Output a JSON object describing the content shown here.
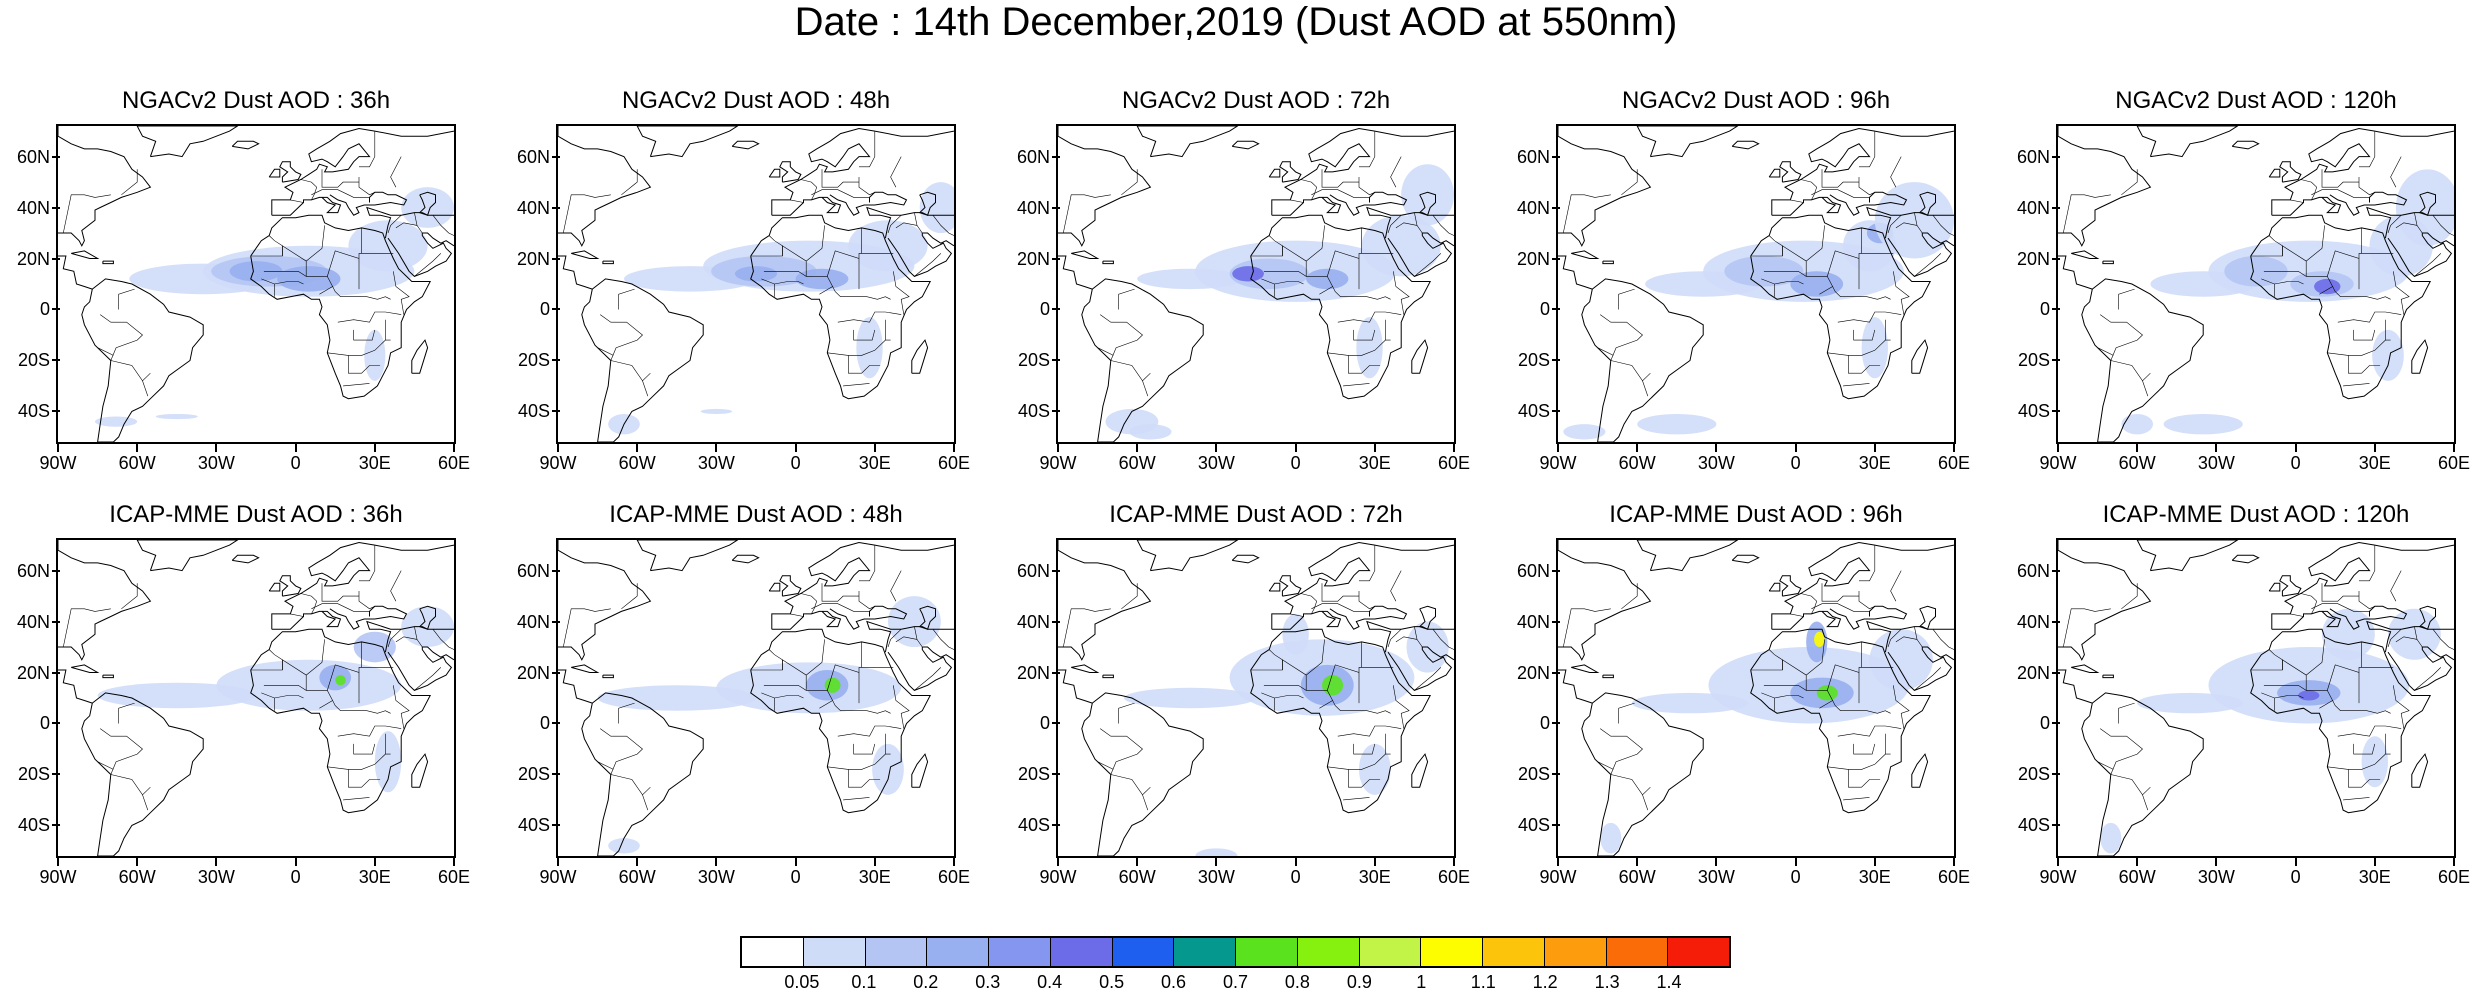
{
  "title": "Date : 14th December,2019 (Dust AOD at 550nm)",
  "panels": [
    {
      "title": "NGACv2 Dust AOD : 36h",
      "row": 0,
      "col": 0
    },
    {
      "title": "NGACv2 Dust AOD : 48h",
      "row": 0,
      "col": 1
    },
    {
      "title": "NGACv2 Dust AOD : 72h",
      "row": 0,
      "col": 2
    },
    {
      "title": "NGACv2 Dust AOD : 96h",
      "row": 0,
      "col": 3
    },
    {
      "title": "NGACv2 Dust AOD : 120h",
      "row": 0,
      "col": 4
    },
    {
      "title": "ICAP-MME Dust AOD : 36h",
      "row": 1,
      "col": 0
    },
    {
      "title": "ICAP-MME Dust AOD : 48h",
      "row": 1,
      "col": 1
    },
    {
      "title": "ICAP-MME Dust AOD : 72h",
      "row": 1,
      "col": 2
    },
    {
      "title": "ICAP-MME Dust AOD : 96h",
      "row": 1,
      "col": 3
    },
    {
      "title": "ICAP-MME Dust AOD : 120h",
      "row": 1,
      "col": 4
    }
  ],
  "lat_labels": [
    "60N",
    "40N",
    "20N",
    "0",
    "20S",
    "40S"
  ],
  "lat_values": [
    60,
    40,
    20,
    0,
    -20,
    -40
  ],
  "lon_labels": [
    "90W",
    "60W",
    "30W",
    "0",
    "30E",
    "60E"
  ],
  "lon_values": [
    -90,
    -60,
    -30,
    0,
    30,
    60
  ],
  "map_extent": {
    "lon": [
      -90,
      60
    ],
    "lat": [
      -52,
      72
    ]
  },
  "colorbar": {
    "labels": [
      "0.05",
      "0.1",
      "0.2",
      "0.3",
      "0.4",
      "0.5",
      "0.6",
      "0.7",
      "0.8",
      "0.9",
      "1",
      "1.1",
      "1.2",
      "1.3",
      "1.4"
    ],
    "colors": [
      "#ffffff",
      "#cfdcf8",
      "#b4c5f4",
      "#98aff0",
      "#8496f0",
      "#6c6ce8",
      "#1f5ff0",
      "#04988f",
      "#5ae21e",
      "#86f00e",
      "#c2f448",
      "#fdfd00",
      "#fdc40c",
      "#fd9c0c",
      "#f96c08",
      "#f51c08"
    ]
  },
  "dust_palette": {
    "low": "#cfdcf8",
    "mid": "#b4c5f4",
    "mid2": "#98aff0",
    "high": "#8496f0",
    "peak": "#6c6ce8",
    "green": "#5ae21e",
    "yellow": "#fdfd00",
    "red": "#f51c08"
  }
}
